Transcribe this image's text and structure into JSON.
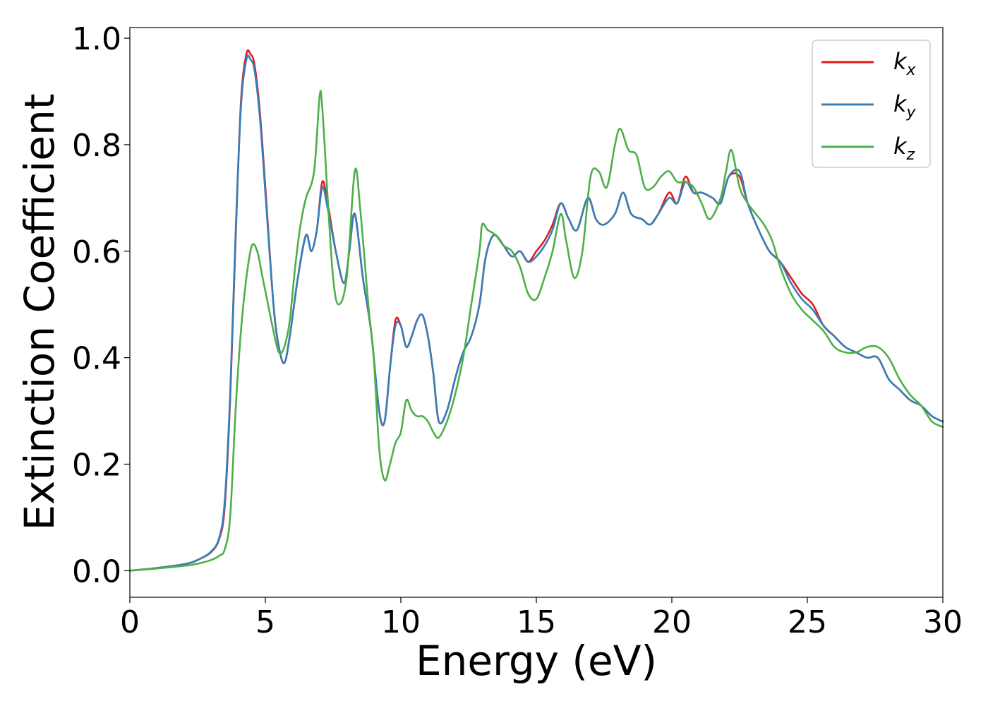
{
  "chart_data": {
    "type": "line",
    "xlabel": "Energy (eV)",
    "ylabel": "Extinction Coefficient",
    "xlim": [
      0,
      30
    ],
    "ylim": [
      -0.05,
      1.02
    ],
    "xticks": [
      0,
      5,
      10,
      15,
      20,
      25,
      30
    ],
    "xtick_labels": [
      "0",
      "5",
      "10",
      "15",
      "20",
      "25",
      "30"
    ],
    "yticks": [
      0.0,
      0.2,
      0.4,
      0.6,
      0.8,
      1.0
    ],
    "ytick_labels": [
      "0.0",
      "0.2",
      "0.4",
      "0.6",
      "0.8",
      "1.0"
    ],
    "grid": false,
    "legend_position": "top-right",
    "series": [
      {
        "name": "k",
        "subscript": "x",
        "color": "#e41a1c",
        "x": [
          0,
          1,
          2,
          2.5,
          3,
          3.3,
          3.5,
          3.7,
          3.9,
          4.1,
          4.3,
          4.45,
          4.6,
          4.8,
          5.0,
          5.3,
          5.5,
          5.7,
          5.9,
          6.2,
          6.5,
          6.7,
          6.9,
          7.1,
          7.3,
          7.6,
          7.9,
          8.1,
          8.3,
          8.6,
          8.9,
          9.2,
          9.4,
          9.6,
          9.8,
          10.0,
          10.2,
          10.4,
          10.6,
          10.8,
          11.0,
          11.2,
          11.4,
          11.7,
          12.0,
          12.3,
          12.6,
          12.9,
          13.1,
          13.3,
          13.5,
          13.8,
          14.1,
          14.4,
          14.7,
          15.0,
          15.3,
          15.6,
          15.9,
          16.2,
          16.5,
          16.9,
          17.2,
          17.5,
          17.9,
          18.2,
          18.5,
          18.9,
          19.2,
          19.5,
          19.9,
          20.2,
          20.5,
          20.8,
          21.1,
          21.5,
          21.8,
          22.1,
          22.5,
          22.8,
          23.2,
          23.6,
          24.0,
          24.4,
          24.8,
          25.2,
          25.6,
          26.0,
          26.4,
          26.8,
          27.2,
          27.6,
          28.0,
          28.4,
          28.8,
          29.2,
          29.6,
          30.0
        ],
        "y": [
          0.0,
          0.005,
          0.012,
          0.02,
          0.035,
          0.06,
          0.12,
          0.32,
          0.62,
          0.88,
          0.97,
          0.97,
          0.95,
          0.86,
          0.72,
          0.5,
          0.42,
          0.39,
          0.44,
          0.55,
          0.63,
          0.6,
          0.64,
          0.73,
          0.69,
          0.6,
          0.54,
          0.6,
          0.67,
          0.55,
          0.45,
          0.3,
          0.28,
          0.38,
          0.47,
          0.46,
          0.42,
          0.44,
          0.47,
          0.48,
          0.44,
          0.37,
          0.28,
          0.3,
          0.36,
          0.41,
          0.44,
          0.5,
          0.58,
          0.62,
          0.63,
          0.61,
          0.59,
          0.6,
          0.58,
          0.6,
          0.62,
          0.65,
          0.69,
          0.66,
          0.64,
          0.7,
          0.66,
          0.65,
          0.67,
          0.71,
          0.67,
          0.66,
          0.65,
          0.67,
          0.71,
          0.69,
          0.74,
          0.71,
          0.71,
          0.7,
          0.69,
          0.74,
          0.74,
          0.69,
          0.64,
          0.6,
          0.58,
          0.55,
          0.52,
          0.5,
          0.46,
          0.44,
          0.42,
          0.41,
          0.4,
          0.4,
          0.36,
          0.34,
          0.32,
          0.31,
          0.29,
          0.28
        ]
      },
      {
        "name": "k",
        "subscript": "y",
        "color": "#377eb8",
        "x": [
          0,
          1,
          2,
          2.5,
          3,
          3.3,
          3.5,
          3.7,
          3.9,
          4.1,
          4.3,
          4.45,
          4.6,
          4.8,
          5.0,
          5.3,
          5.5,
          5.7,
          5.9,
          6.2,
          6.5,
          6.7,
          6.9,
          7.1,
          7.3,
          7.6,
          7.9,
          8.1,
          8.3,
          8.6,
          8.9,
          9.2,
          9.4,
          9.6,
          9.8,
          10.0,
          10.2,
          10.4,
          10.6,
          10.8,
          11.0,
          11.2,
          11.4,
          11.7,
          12.0,
          12.3,
          12.6,
          12.9,
          13.1,
          13.3,
          13.5,
          13.8,
          14.1,
          14.4,
          14.7,
          15.0,
          15.3,
          15.6,
          15.9,
          16.2,
          16.5,
          16.9,
          17.2,
          17.5,
          17.9,
          18.2,
          18.5,
          18.9,
          19.2,
          19.5,
          19.9,
          20.2,
          20.5,
          20.8,
          21.1,
          21.5,
          21.8,
          22.1,
          22.5,
          22.8,
          23.2,
          23.6,
          24.0,
          24.4,
          24.8,
          25.2,
          25.6,
          26.0,
          26.4,
          26.8,
          27.2,
          27.6,
          28.0,
          28.4,
          28.8,
          29.2,
          29.6,
          30.0
        ],
        "y": [
          0.0,
          0.005,
          0.012,
          0.02,
          0.036,
          0.062,
          0.13,
          0.33,
          0.63,
          0.87,
          0.96,
          0.96,
          0.94,
          0.85,
          0.71,
          0.5,
          0.42,
          0.39,
          0.44,
          0.55,
          0.63,
          0.6,
          0.64,
          0.72,
          0.68,
          0.6,
          0.54,
          0.6,
          0.67,
          0.55,
          0.45,
          0.3,
          0.28,
          0.38,
          0.46,
          0.46,
          0.42,
          0.44,
          0.47,
          0.48,
          0.44,
          0.37,
          0.28,
          0.3,
          0.36,
          0.41,
          0.44,
          0.5,
          0.58,
          0.62,
          0.63,
          0.61,
          0.59,
          0.6,
          0.58,
          0.59,
          0.61,
          0.64,
          0.69,
          0.66,
          0.64,
          0.7,
          0.66,
          0.65,
          0.67,
          0.71,
          0.67,
          0.66,
          0.65,
          0.67,
          0.7,
          0.69,
          0.73,
          0.71,
          0.71,
          0.7,
          0.69,
          0.74,
          0.75,
          0.69,
          0.64,
          0.6,
          0.58,
          0.54,
          0.51,
          0.49,
          0.46,
          0.44,
          0.42,
          0.41,
          0.4,
          0.4,
          0.36,
          0.34,
          0.32,
          0.31,
          0.29,
          0.28
        ]
      },
      {
        "name": "k",
        "subscript": "z",
        "color": "#4daf4a",
        "x": [
          0,
          1,
          2,
          2.5,
          3,
          3.3,
          3.5,
          3.7,
          3.9,
          4.1,
          4.3,
          4.5,
          4.7,
          4.9,
          5.1,
          5.3,
          5.5,
          5.7,
          5.9,
          6.1,
          6.3,
          6.5,
          6.8,
          7.0,
          7.1,
          7.3,
          7.5,
          7.7,
          8.0,
          8.3,
          8.5,
          8.8,
          9.0,
          9.2,
          9.4,
          9.6,
          9.8,
          10.0,
          10.2,
          10.4,
          10.6,
          10.8,
          11.0,
          11.2,
          11.4,
          11.7,
          12.0,
          12.3,
          12.6,
          12.9,
          13.0,
          13.2,
          13.5,
          13.8,
          14.1,
          14.4,
          14.7,
          15.0,
          15.3,
          15.6,
          15.9,
          16.1,
          16.4,
          16.7,
          17.0,
          17.3,
          17.6,
          17.9,
          18.1,
          18.4,
          18.7,
          19.0,
          19.3,
          19.6,
          19.9,
          20.2,
          20.5,
          20.8,
          21.1,
          21.4,
          21.8,
          22.0,
          22.2,
          22.5,
          22.8,
          23.1,
          23.4,
          23.7,
          24.0,
          24.4,
          24.8,
          25.2,
          25.6,
          26.0,
          26.4,
          26.8,
          27.2,
          27.6,
          28.0,
          28.4,
          28.8,
          29.2,
          29.6,
          30.0
        ],
        "y": [
          0.0,
          0.004,
          0.009,
          0.013,
          0.02,
          0.028,
          0.04,
          0.1,
          0.3,
          0.45,
          0.55,
          0.61,
          0.6,
          0.55,
          0.5,
          0.45,
          0.41,
          0.42,
          0.47,
          0.57,
          0.65,
          0.7,
          0.75,
          0.89,
          0.87,
          0.7,
          0.55,
          0.5,
          0.55,
          0.75,
          0.68,
          0.5,
          0.4,
          0.23,
          0.17,
          0.2,
          0.24,
          0.26,
          0.32,
          0.3,
          0.29,
          0.29,
          0.28,
          0.26,
          0.25,
          0.28,
          0.33,
          0.4,
          0.5,
          0.6,
          0.65,
          0.64,
          0.63,
          0.61,
          0.6,
          0.57,
          0.52,
          0.51,
          0.55,
          0.6,
          0.67,
          0.62,
          0.55,
          0.6,
          0.74,
          0.75,
          0.72,
          0.8,
          0.83,
          0.79,
          0.78,
          0.72,
          0.72,
          0.74,
          0.75,
          0.73,
          0.73,
          0.72,
          0.69,
          0.66,
          0.7,
          0.75,
          0.79,
          0.72,
          0.69,
          0.67,
          0.65,
          0.62,
          0.57,
          0.52,
          0.49,
          0.47,
          0.45,
          0.42,
          0.41,
          0.41,
          0.42,
          0.42,
          0.4,
          0.36,
          0.33,
          0.31,
          0.28,
          0.27
        ]
      }
    ]
  }
}
